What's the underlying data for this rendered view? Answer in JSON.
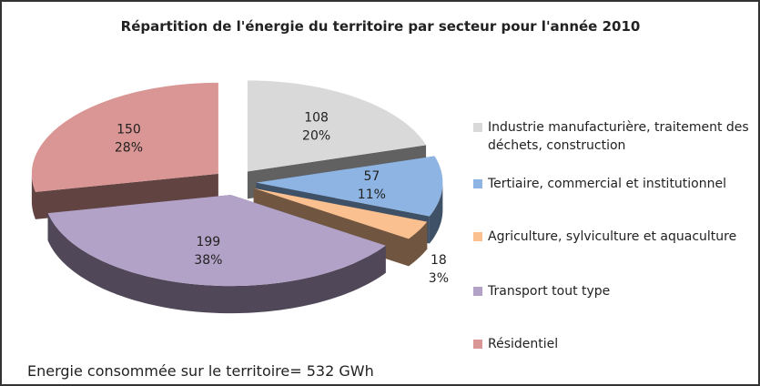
{
  "chart_data": {
    "type": "pie3d",
    "title": "Répartition de l'énergie du territoire par secteur pour l'année 2010",
    "categories": [
      "Industrie manufacturière, traitement des déchets, construction",
      "Tertiaire, commercial et institutionnel",
      "Agriculture, sylviculture et aquaculture",
      "Transport tout type",
      "Résidentiel"
    ],
    "values": [
      108,
      57,
      18,
      199,
      150
    ],
    "percent_labels": [
      "20%",
      "11%",
      "3%",
      "38%",
      "28%"
    ],
    "colors": [
      "#d9d9d9",
      "#8eb4e3",
      "#fac090",
      "#b3a2c7",
      "#d99694"
    ],
    "annotation": "Energie consommée sur le territoire= 532 GWh",
    "legend": "right"
  }
}
